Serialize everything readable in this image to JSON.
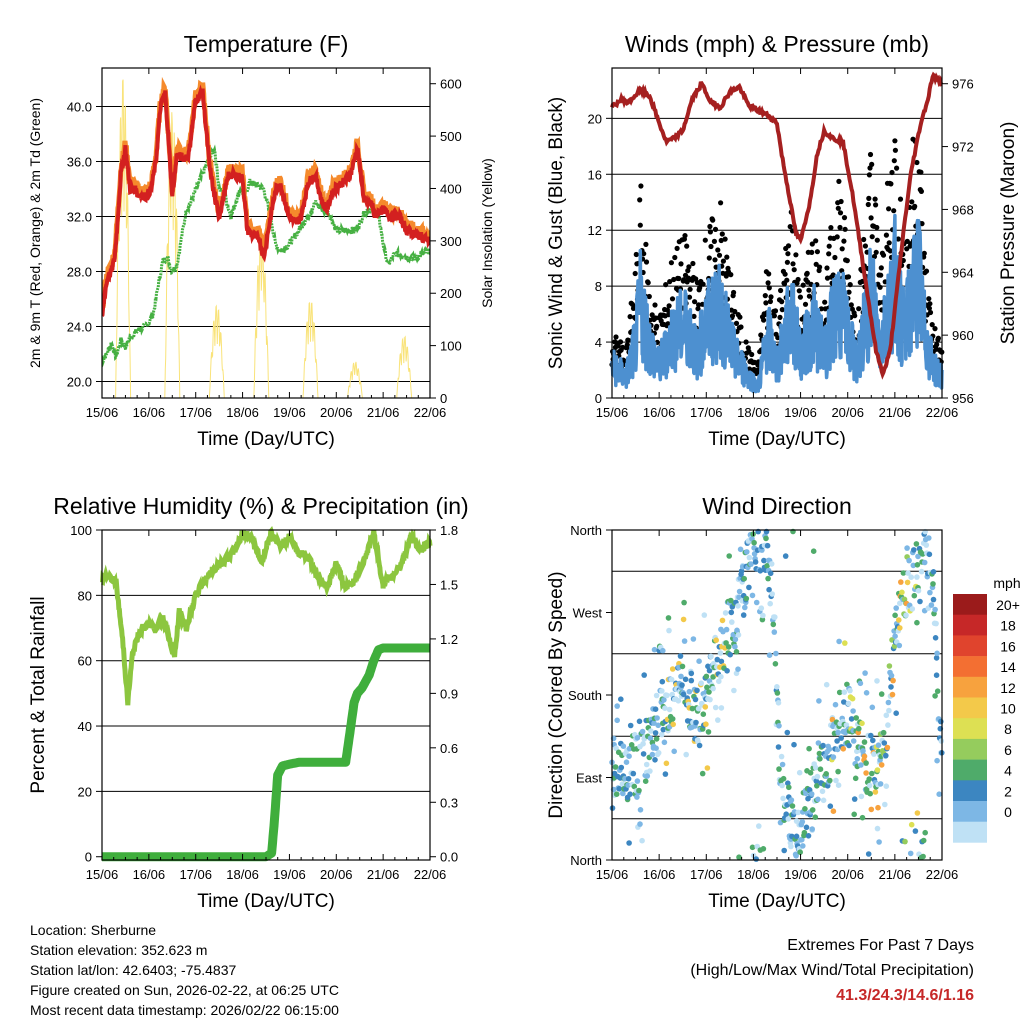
{
  "chart_data": [
    {
      "type": "line",
      "title": "Temperature (F)",
      "xlabel": "Time (Day/UTC)",
      "ylabel": "2m & 9m T (Red, Orange) & 2m Td (Green)",
      "y2label": "Solar Insolation (Yellow)",
      "xticks": [
        "15/06",
        "16/06",
        "17/06",
        "18/06",
        "19/06",
        "20/06",
        "21/06",
        "22/06"
      ],
      "ylim": [
        18.8,
        42.8
      ],
      "yticks": [
        "20.0",
        "24.0",
        "28.0",
        "32.0",
        "36.0",
        "40.0"
      ],
      "y2lim": [
        0,
        630
      ],
      "y2ticks": [
        "0",
        "100",
        "200",
        "300",
        "400",
        "500",
        "600"
      ],
      "series": [
        {
          "name": "2m T",
          "color": "#d32020",
          "x": [
            0,
            0.06,
            0.12,
            0.2,
            0.27,
            0.33,
            0.4,
            0.5,
            0.6,
            0.7,
            0.8,
            0.95,
            1.05,
            1.15,
            1.25,
            1.35,
            1.5,
            1.6,
            1.72,
            1.85,
            2.0,
            2.15,
            2.3,
            2.4,
            2.5,
            2.6,
            2.7,
            2.85,
            3.0,
            3.1,
            3.25,
            3.35,
            3.45,
            3.55,
            3.65,
            3.72,
            3.8,
            4.0,
            4.15,
            4.25,
            4.4,
            4.55,
            4.7,
            4.8,
            4.95,
            5.15,
            5.3,
            5.45,
            5.6,
            5.75,
            5.82,
            5.9,
            6.0,
            6.15,
            6.35,
            6.5,
            6.7,
            6.85,
            7.0
          ],
          "values": [
            24.5,
            26.5,
            27.5,
            28,
            29,
            31.5,
            35,
            37,
            34,
            34,
            33.5,
            33.5,
            34,
            36,
            40,
            41,
            33.5,
            36.5,
            36.2,
            36.5,
            40.5,
            41,
            35.5,
            33.5,
            32,
            33.5,
            35,
            35,
            34.8,
            31,
            30.5,
            30.5,
            29,
            31,
            33,
            34,
            34.3,
            32,
            31.5,
            32,
            34.5,
            35,
            33,
            32.5,
            34,
            34.5,
            35,
            37,
            33,
            33,
            32,
            32.3,
            32.5,
            32,
            32,
            31,
            30.7,
            30.5,
            30.2
          ]
        },
        {
          "name": "9m T",
          "color": "#f58a2c",
          "values_offset": 0.4
        },
        {
          "name": "2m Td",
          "color": "#46b042",
          "x": [
            0,
            0.1,
            0.2,
            0.3,
            0.4,
            0.5,
            0.6,
            0.7,
            0.8,
            0.9,
            1.0,
            1.1,
            1.2,
            1.3,
            1.4,
            1.5,
            1.6,
            1.7,
            1.8,
            1.9,
            2.0,
            2.2,
            2.4,
            2.5,
            2.6,
            2.75,
            2.85,
            2.95,
            3.05,
            3.15,
            3.3,
            3.45,
            3.6,
            3.7,
            3.8,
            4.0,
            4.2,
            4.4,
            4.55,
            4.7,
            4.85,
            5.0,
            5.2,
            5.4,
            5.5,
            5.6,
            5.75,
            5.9,
            6.0,
            6.1,
            6.25,
            6.4,
            6.55,
            6.7,
            6.85,
            7.0
          ],
          "values": [
            21.5,
            22,
            22.8,
            21.8,
            23,
            22.5,
            23.2,
            23.5,
            23.8,
            24,
            24.3,
            25,
            27,
            28.8,
            29,
            28,
            28.5,
            30.5,
            32.5,
            33,
            34,
            35.5,
            37,
            34,
            33.8,
            32,
            33,
            34,
            33.5,
            34.5,
            34.3,
            34,
            32,
            30,
            29.5,
            30,
            31,
            32,
            33,
            32.5,
            32.2,
            31,
            31,
            31,
            31.5,
            32.3,
            32.5,
            32.2,
            30,
            28.5,
            29.3,
            29.2,
            29,
            29,
            29.3,
            29.5
          ]
        },
        {
          "name": "Solar Insolation",
          "color": "#f9e37a",
          "peaks": [
            [
              0.45,
              620
            ],
            [
              1.5,
              550
            ],
            [
              2.45,
              180
            ],
            [
              3.4,
              320
            ],
            [
              4.45,
              190
            ],
            [
              5.4,
              70
            ],
            [
              6.45,
              120
            ]
          ]
        }
      ]
    },
    {
      "type": "line",
      "title": "Winds (mph) & Pressure (mb)",
      "xlabel": "Time (Day/UTC)",
      "ylabel": "Sonic Wind & Gust (Blue, Black)",
      "y2label": "Station Pressure (Maroon)",
      "xticks": [
        "15/06",
        "16/06",
        "17/06",
        "18/06",
        "19/06",
        "20/06",
        "21/06",
        "22/06"
      ],
      "ylim": [
        0,
        23.6
      ],
      "yticks": [
        "0",
        "4",
        "8",
        "12",
        "16",
        "20"
      ],
      "y2lim": [
        956,
        977
      ],
      "y2ticks": [
        "956",
        "960",
        "964",
        "968",
        "972",
        "976"
      ],
      "series": [
        {
          "name": "Sonic Wind",
          "color": "#4d90d0",
          "x": [
            0,
            0.3,
            0.5,
            0.6,
            0.8,
            1.0,
            1.3,
            1.6,
            1.8,
            2.0,
            2.3,
            2.6,
            2.9,
            3.1,
            3.3,
            3.5,
            3.8,
            4.0,
            4.3,
            4.5,
            4.8,
            5.0,
            5.2,
            5.5,
            5.7,
            6.0,
            6.2,
            6.5,
            6.6,
            6.8,
            7.0
          ],
          "values": [
            3,
            2,
            5,
            9,
            5,
            3,
            6,
            7,
            4,
            7,
            8,
            4,
            2,
            1,
            6,
            3,
            8,
            4,
            7,
            4,
            9,
            6,
            3,
            10,
            5,
            11,
            6,
            12,
            7,
            3,
            2
          ]
        },
        {
          "name": "Gust",
          "color": "#000000",
          "x": [
            0,
            0.3,
            0.5,
            0.6,
            0.8,
            1.0,
            1.3,
            1.6,
            1.8,
            2.0,
            2.3,
            2.6,
            2.9,
            3.1,
            3.3,
            3.5,
            3.8,
            4.0,
            4.3,
            4.5,
            4.8,
            5.0,
            5.2,
            5.5,
            5.7,
            6.0,
            6.2,
            6.5,
            6.6,
            6.8,
            7.0
          ],
          "values": [
            4,
            3,
            8,
            13,
            7,
            5,
            9,
            10,
            7,
            10,
            12,
            6,
            3,
            2,
            9,
            5,
            12,
            6,
            11,
            6,
            15,
            9,
            5,
            16,
            8,
            18,
            9,
            20,
            10,
            5,
            3
          ]
        },
        {
          "name": "Station Pressure",
          "color": "#a52020",
          "x": [
            0,
            0.2,
            0.35,
            0.6,
            0.8,
            1.0,
            1.15,
            1.3,
            1.5,
            1.7,
            1.9,
            2.1,
            2.3,
            2.5,
            2.7,
            2.9,
            3.1,
            3.3,
            3.5,
            3.6,
            3.75,
            3.9,
            4.0,
            4.2,
            4.35,
            4.5,
            4.7,
            4.9,
            5.1,
            5.3,
            5.45,
            5.6,
            5.75,
            5.9,
            6.05,
            6.2,
            6.35,
            6.45,
            6.55,
            6.7,
            6.8,
            6.9,
            7.0
          ],
          "values": [
            974.5,
            975,
            974.8,
            975.6,
            975.2,
            973.5,
            972.3,
            972.5,
            973,
            975,
            976,
            974.8,
            974.5,
            975.5,
            975.8,
            974.6,
            974.3,
            974,
            973.5,
            971.5,
            969,
            966.5,
            966,
            968.5,
            971.5,
            973,
            972.5,
            972.3,
            969,
            965,
            962,
            959,
            957.5,
            959,
            963,
            967,
            970.5,
            972,
            973.5,
            975,
            976.5,
            976.3,
            976
          ]
        }
      ]
    },
    {
      "type": "line",
      "title": "Relative Humidity (%) & Precipitation (in)",
      "xlabel": "Time (Day/UTC)",
      "ylabel": "Percent & Total Rainfall",
      "xticks": [
        "15/06",
        "16/06",
        "17/06",
        "18/06",
        "19/06",
        "20/06",
        "21/06",
        "22/06"
      ],
      "ylim": [
        -1,
        100
      ],
      "yticks": [
        "0",
        "20",
        "40",
        "60",
        "80",
        "100"
      ],
      "y2lim": [
        -0.018,
        1.8
      ],
      "y2ticks": [
        "0.0",
        "0.3",
        "0.6",
        "0.9",
        "1.2",
        "1.5",
        "1.8"
      ],
      "series": [
        {
          "name": "Relative Humidity",
          "color": "#8cc63f",
          "x": [
            0,
            0.15,
            0.3,
            0.45,
            0.55,
            0.65,
            0.8,
            1.0,
            1.15,
            1.3,
            1.45,
            1.55,
            1.65,
            1.8,
            2.0,
            2.2,
            2.4,
            2.55,
            2.8,
            3.0,
            3.2,
            3.4,
            3.6,
            3.8,
            4.0,
            4.2,
            4.4,
            4.6,
            4.8,
            5.0,
            5.2,
            5.4,
            5.6,
            5.8,
            6.0,
            6.2,
            6.4,
            6.6,
            6.8,
            7.0
          ],
          "values": [
            85,
            86,
            84,
            65,
            47,
            62,
            69,
            71,
            70,
            73,
            66,
            61,
            75,
            70,
            80,
            85,
            88,
            90,
            93,
            99,
            98,
            90,
            99,
            95,
            98,
            93,
            92,
            86,
            82,
            90,
            82,
            85,
            91,
            99,
            83,
            86,
            90,
            98,
            94,
            96
          ]
        },
        {
          "name": "Total Precipitation",
          "color": "#3fae3c",
          "x": [
            0,
            3.5,
            3.62,
            3.68,
            3.75,
            3.85,
            4.0,
            4.2,
            4.5,
            5.2,
            5.3,
            5.38,
            5.45,
            5.55,
            5.7,
            5.8,
            5.9,
            6.0,
            6.4,
            7.0
          ],
          "values": [
            0,
            0,
            0.02,
            0.2,
            0.45,
            0.5,
            0.51,
            0.52,
            0.52,
            0.52,
            0.7,
            0.85,
            0.9,
            0.93,
            1.0,
            1.08,
            1.14,
            1.15,
            1.15,
            1.15
          ]
        }
      ]
    },
    {
      "type": "scatter",
      "title": "Wind Direction",
      "xlabel": "Time (Day/UTC)",
      "ylabel": "Direction (Colored By Speed)",
      "xticks": [
        "15/06",
        "16/06",
        "17/06",
        "18/06",
        "19/06",
        "20/06",
        "21/06",
        "22/06"
      ],
      "yticks": [
        "North",
        "East",
        "South",
        "West",
        "North"
      ],
      "ylim": [
        0,
        360
      ],
      "trace_deg": {
        "x": [
          0,
          0.3,
          0.6,
          0.9,
          1.2,
          1.5,
          1.8,
          2.1,
          2.4,
          2.7,
          3.0,
          3.3,
          3.6,
          3.9,
          4.2,
          4.5,
          4.8,
          5.0,
          5.3,
          5.6,
          5.8,
          6.0,
          6.2,
          6.4,
          6.6,
          6.8,
          7.0
        ],
        "values": [
          90,
          100,
          110,
          140,
          170,
          200,
          150,
          200,
          240,
          280,
          345,
          350,
          80,
          20,
          60,
          100,
          150,
          160,
          110,
          100,
          130,
          250,
          290,
          310,
          340,
          300,
          100
        ]
      },
      "legend_title": "mph",
      "legend": [
        "20+",
        "18",
        "16",
        "14",
        "12",
        "10",
        "8",
        "6",
        "4",
        "2",
        "0"
      ],
      "legend_colors": [
        "#9b1b1b",
        "#c62828",
        "#e0442d",
        "#f36f32",
        "#f7a23e",
        "#f3c94a",
        "#dde053",
        "#95cc5d",
        "#4fab6a",
        "#3c86c1",
        "#7db7e5",
        "#bfe1f5"
      ]
    }
  ],
  "info": {
    "location": "Location: Sherburne",
    "elevation": "Station elevation: 352.623 m",
    "latlon": "Station lat/lon: 42.6403; -75.4837",
    "created": "Figure created on Sun, 2026-02-22, at 06:25 UTC",
    "recent": "Most recent data timestamp: 2026/02/22 06:15:00"
  },
  "extremes": {
    "line1": "Extremes For Past 7 Days",
    "line2": "(High/Low/Max Wind/Total Precipitation)",
    "values": "41.3/24.3/14.6/1.16"
  }
}
